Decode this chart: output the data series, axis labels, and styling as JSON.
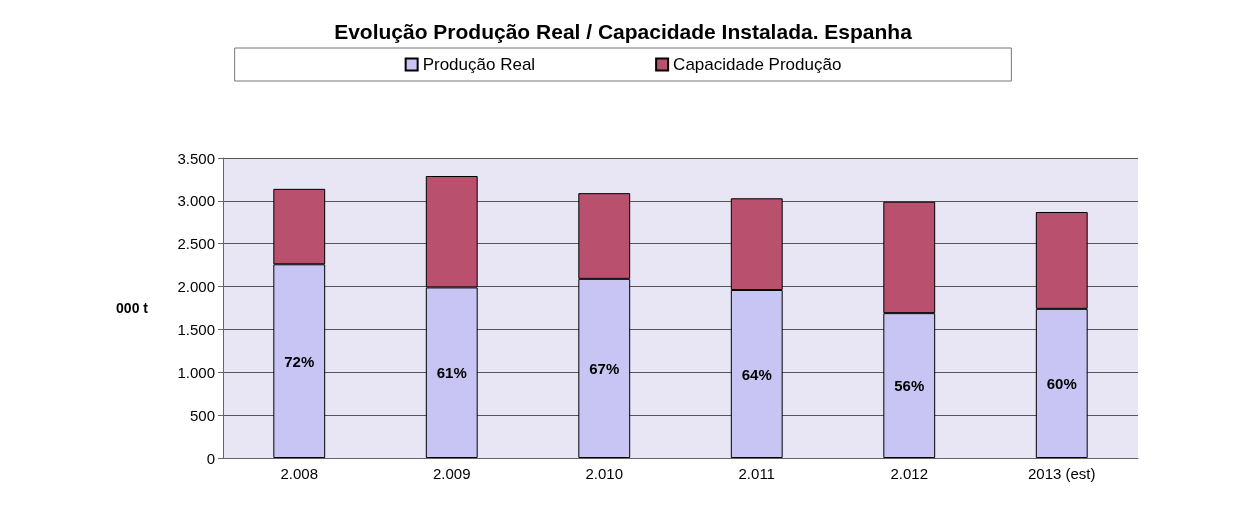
{
  "chart_data": {
    "type": "bar",
    "title": "Evolução Produção Real / Capacidade Instalada. Espanha",
    "ylabel": "000 t",
    "categories": [
      "2.008",
      "2.009",
      "2.010",
      "2.011",
      "2.012",
      "2013 (est)"
    ],
    "stacked": true,
    "series": [
      {
        "name": "Produção Real",
        "color": "#c8c4f4",
        "values": [
          2260,
          1990,
          2090,
          1960,
          1690,
          1740
        ]
      },
      {
        "name": "Capacidade Produção",
        "color": "#b8506e",
        "values": [
          880,
          1300,
          1000,
          1070,
          1300,
          1130
        ]
      }
    ],
    "ylim": [
      0,
      3500
    ],
    "yticks": [
      0,
      {
        "value": 500,
        "label": "500"
      },
      {
        "value": 1000,
        "label": "1.000"
      },
      {
        "value": 1500,
        "label": "1.500"
      },
      {
        "value": 2000,
        "label": "2.000"
      },
      {
        "value": 2500,
        "label": "2.500"
      },
      {
        "value": 3000,
        "label": "3.000"
      },
      {
        "value": 3500,
        "label": "3.500"
      }
    ],
    "annotations": [
      "72%",
      "61%",
      "67%",
      "64%",
      "56%",
      "60%"
    ],
    "grid": "y",
    "legend": "top"
  }
}
